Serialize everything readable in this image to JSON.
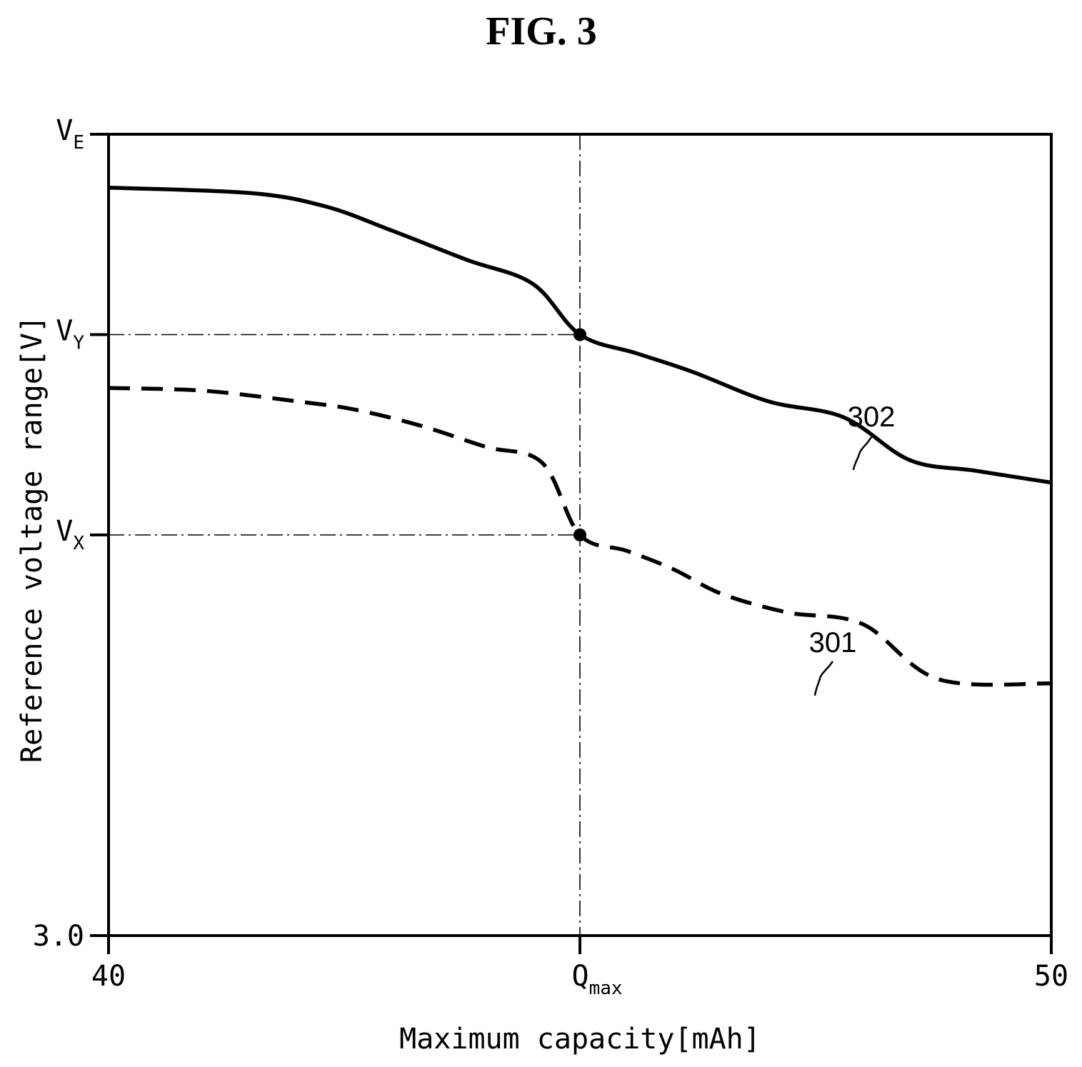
{
  "figure_title": "FIG. 3",
  "chart_data": {
    "type": "line",
    "title": "FIG. 3",
    "xlabel": "Maximum capacity[mAh]",
    "ylabel": "Reference voltage range[V]",
    "xlim": [
      40,
      50
    ],
    "ylim": [
      3.0,
      4.5
    ],
    "x_ticks": [
      {
        "value": 40,
        "label": "40",
        "sub": ""
      },
      {
        "value": 45,
        "label": "Q",
        "sub": "max"
      },
      {
        "value": 50,
        "label": "50",
        "sub": ""
      }
    ],
    "y_ticks": [
      {
        "value": 3.0,
        "label": "3.0",
        "sub": ""
      },
      {
        "value": 3.75,
        "label": "V",
        "sub": "X"
      },
      {
        "value": 4.125,
        "label": "V",
        "sub": "Y"
      },
      {
        "value": 4.5,
        "label": "V",
        "sub": "E"
      }
    ],
    "guides": [
      {
        "x": 45,
        "y": 4.125
      },
      {
        "x": 45,
        "y": 3.75
      }
    ],
    "series": [
      {
        "ref": "302",
        "style": "solid",
        "x": [
          40.0,
          41.5,
          42.3,
          43.0,
          43.8,
          44.5,
          45.0,
          45.6,
          46.2,
          47.0,
          47.8,
          48.5,
          49.2,
          50.0
        ],
        "y": [
          4.4,
          4.39,
          4.365,
          4.32,
          4.265,
          4.22,
          4.125,
          4.09,
          4.055,
          4.0,
          3.97,
          3.89,
          3.87,
          3.848
        ]
      },
      {
        "ref": "301",
        "style": "dashed",
        "x": [
          40.0,
          41.0,
          42.0,
          42.6,
          43.3,
          44.0,
          44.6,
          45.0,
          45.5,
          46.0,
          46.5,
          47.2,
          48.0,
          48.8,
          50.0
        ],
        "y": [
          4.025,
          4.02,
          4.0,
          3.985,
          3.955,
          3.915,
          3.885,
          3.75,
          3.72,
          3.685,
          3.64,
          3.605,
          3.583,
          3.48,
          3.472
        ]
      }
    ],
    "intersection_points": [
      {
        "x": 45,
        "y": 4.125
      },
      {
        "x": 45,
        "y": 3.75
      }
    ]
  }
}
